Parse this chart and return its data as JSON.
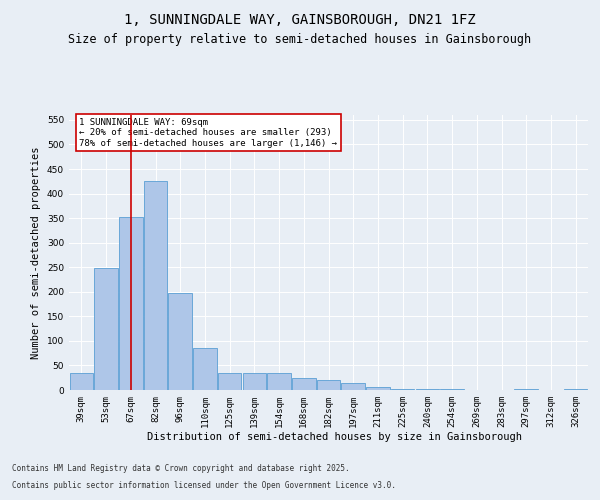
{
  "title": "1, SUNNINGDALE WAY, GAINSBOROUGH, DN21 1FZ",
  "subtitle": "Size of property relative to semi-detached houses in Gainsborough",
  "xlabel": "Distribution of semi-detached houses by size in Gainsborough",
  "ylabel": "Number of semi-detached properties",
  "footer_line1": "Contains HM Land Registry data © Crown copyright and database right 2025.",
  "footer_line2": "Contains public sector information licensed under the Open Government Licence v3.0.",
  "categories": [
    "39sqm",
    "53sqm",
    "67sqm",
    "82sqm",
    "96sqm",
    "110sqm",
    "125sqm",
    "139sqm",
    "154sqm",
    "168sqm",
    "182sqm",
    "197sqm",
    "211sqm",
    "225sqm",
    "240sqm",
    "254sqm",
    "269sqm",
    "283sqm",
    "297sqm",
    "312sqm",
    "326sqm"
  ],
  "values": [
    35,
    248,
    353,
    425,
    197,
    85,
    35,
    35,
    35,
    25,
    20,
    15,
    7,
    2,
    2,
    2,
    0,
    0,
    2,
    0,
    2
  ],
  "bar_color": "#aec6e8",
  "bar_edge_color": "#5a9fd4",
  "vline_color": "#cc0000",
  "annotation_text": "1 SUNNINGDALE WAY: 69sqm\n← 20% of semi-detached houses are smaller (293)\n78% of semi-detached houses are larger (1,146) →",
  "annotation_box_color": "#ffffff",
  "annotation_box_edge": "#cc0000",
  "ylim": [
    0,
    560
  ],
  "yticks": [
    0,
    50,
    100,
    150,
    200,
    250,
    300,
    350,
    400,
    450,
    500,
    550
  ],
  "bg_color": "#e8eef5",
  "plot_bg_color": "#e8eef5",
  "title_fontsize": 10,
  "subtitle_fontsize": 8.5,
  "axis_label_fontsize": 7.5,
  "tick_fontsize": 6.5,
  "footer_fontsize": 5.5,
  "annotation_fontsize": 6.5
}
